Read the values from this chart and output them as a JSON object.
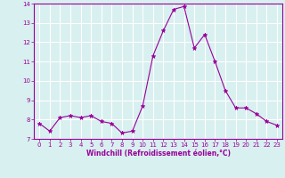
{
  "x": [
    0,
    1,
    2,
    3,
    4,
    5,
    6,
    7,
    8,
    9,
    10,
    11,
    12,
    13,
    14,
    15,
    16,
    17,
    18,
    19,
    20,
    21,
    22,
    23
  ],
  "y": [
    7.8,
    7.4,
    8.1,
    8.2,
    8.1,
    8.2,
    7.9,
    7.8,
    7.3,
    7.4,
    8.7,
    11.3,
    12.6,
    13.7,
    13.85,
    11.7,
    12.4,
    11.0,
    9.5,
    8.6,
    8.6,
    8.3,
    7.9,
    7.7
  ],
  "line_color": "#990099",
  "marker": "*",
  "marker_size": 3.5,
  "background_color": "#d8f0f0",
  "grid_color": "#ffffff",
  "xlabel": "Windchill (Refroidissement éolien,°C)",
  "xlabel_color": "#990099",
  "tick_color": "#990099",
  "ylim": [
    7,
    14
  ],
  "xlim": [
    -0.5,
    23.5
  ],
  "yticks": [
    7,
    8,
    9,
    10,
    11,
    12,
    13,
    14
  ],
  "xticks": [
    0,
    1,
    2,
    3,
    4,
    5,
    6,
    7,
    8,
    9,
    10,
    11,
    12,
    13,
    14,
    15,
    16,
    17,
    18,
    19,
    20,
    21,
    22,
    23
  ],
  "tick_fontsize": 5,
  "xlabel_fontsize": 5.5,
  "linewidth": 0.8
}
